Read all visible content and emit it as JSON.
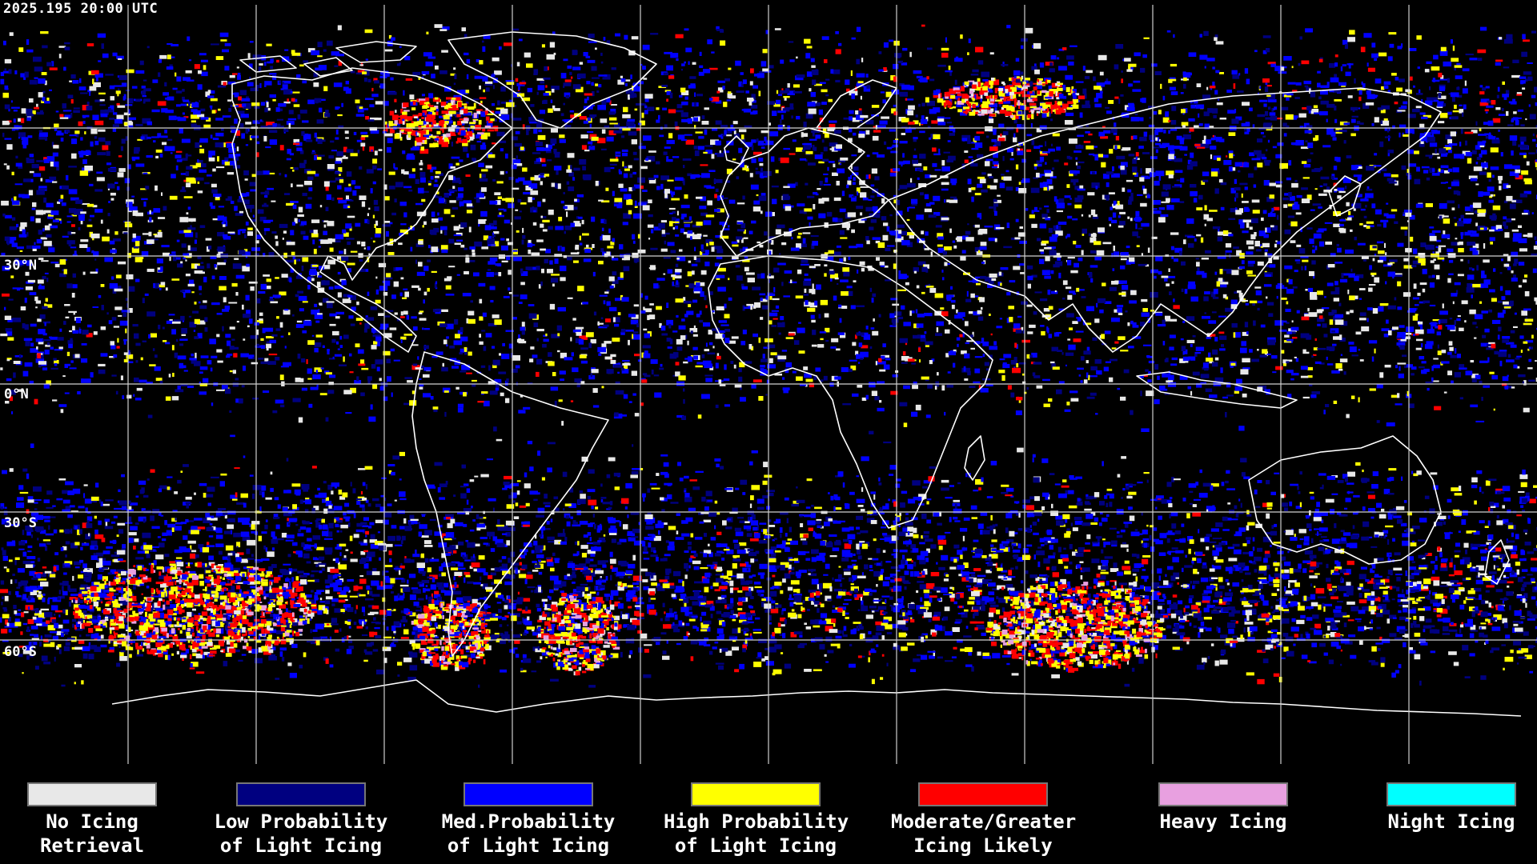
{
  "timestamp": "2025.195 20:00 UTC",
  "latitude_labels": [
    "30°N",
    "0°N",
    "30°S",
    "60°S"
  ],
  "legend": [
    {
      "line1": "No Icing",
      "line2": "Retrieval",
      "color": "#e8e8e8"
    },
    {
      "line1": "Low Probability",
      "line2": "of Light Icing",
      "color": "#000080"
    },
    {
      "line1": "Med.Probability",
      "line2": "of Light Icing",
      "color": "#0000ff"
    },
    {
      "line1": "High Probability",
      "line2": "of Light Icing",
      "color": "#ffff00"
    },
    {
      "line1": "Moderate/Greater",
      "line2": "Icing Likely",
      "color": "#ff0000"
    },
    {
      "line1": "Heavy Icing",
      "line2": "",
      "color": "#e8a0e0"
    },
    {
      "line1": "Night Icing",
      "line2": "",
      "color": "#00ffff"
    }
  ],
  "colors": {
    "background": "#000000",
    "grid": "#cfcfcf",
    "coastline": "#ffffff",
    "low": "#000080",
    "med": "#0000ff",
    "high": "#ffff00",
    "moderate": "#ff0000",
    "heavy": "#e8a0e0",
    "none": "#e8e8e8"
  }
}
